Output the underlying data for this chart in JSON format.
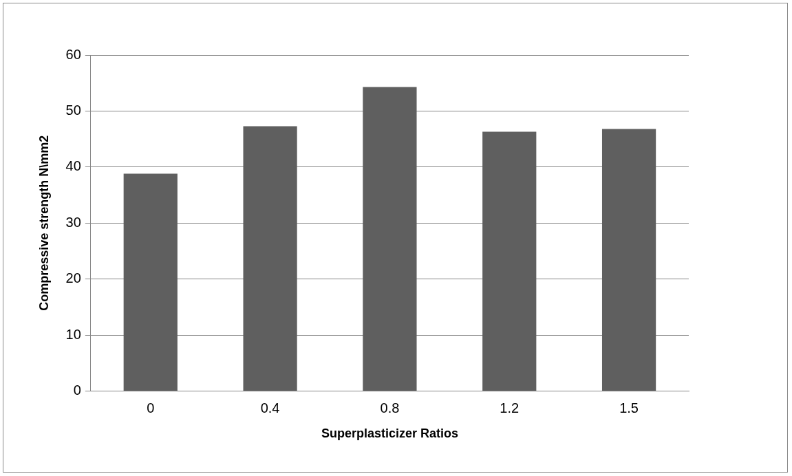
{
  "chart_data": {
    "type": "bar",
    "xlabel": "Superplasticizer Ratios",
    "ylabel": "Compressive strength N\\mm2",
    "categories": [
      "0",
      "0.4",
      "0.8",
      "1.2",
      "1.5"
    ],
    "values": [
      38.8,
      47.3,
      54.3,
      46.3,
      46.8
    ],
    "color": "#5f5f5f",
    "ylim": [
      0,
      60
    ],
    "yticks": [
      0,
      10,
      20,
      30,
      40,
      50,
      60
    ],
    "grid": "y",
    "legend": false
  }
}
